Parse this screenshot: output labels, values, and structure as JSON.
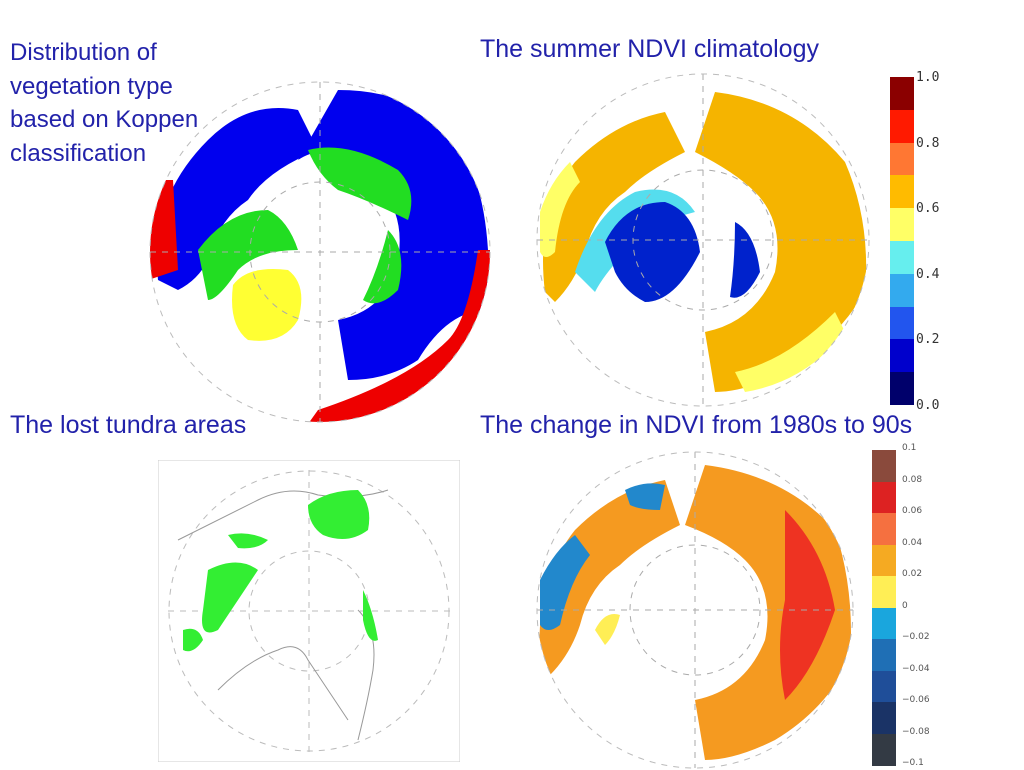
{
  "titles": {
    "top_left": "Distribution of vegetation type based on Koppen classification",
    "top_right": "The summer NDVI climatology",
    "bottom_left": "The lost tundra areas",
    "bottom_right": "The change in NDVI from 1980s to 90s"
  },
  "maps": {
    "top_left": {
      "colors": {
        "land_main": "#0000ee",
        "tundra": "#22dd22",
        "greenland": "#ffff33",
        "hot": "#ee0000"
      }
    },
    "top_right": {
      "colors": {
        "main": "#f5b400",
        "pale": "#ffff66",
        "cyan": "#55ddee",
        "blue": "#0022cc"
      }
    },
    "bottom_left": {
      "colors": {
        "lost": "#33ee33",
        "coast": "#999999"
      }
    },
    "bottom_right": {
      "colors": {
        "warm": "#f59a20",
        "red": "#ee3322",
        "blue": "#2288cc",
        "yellow": "#ffee55"
      }
    }
  },
  "colorbar_ndvi": {
    "ticks": [
      "1.0",
      "0.8",
      "0.6",
      "0.4",
      "0.2",
      "0.0"
    ],
    "colors": [
      "#8b0000",
      "#ff1a00",
      "#ff7733",
      "#ffbb00",
      "#ffff66",
      "#66eeee",
      "#33aaee",
      "#2255ee",
      "#0000cc",
      "#00006b"
    ]
  },
  "colorbar_change": {
    "ticks": [
      "0.1",
      "0.08",
      "0.06",
      "0.04",
      "0.02",
      "0",
      "−0.02",
      "−0.04",
      "−0.06",
      "−0.08",
      "−0.1"
    ],
    "colors": [
      "#8a4a3c",
      "#dd2222",
      "#f57040",
      "#f5aa22",
      "#ffee55",
      "#1aa6dd",
      "#1f6fb5",
      "#1f4e99",
      "#1a3366",
      "#333a44"
    ]
  }
}
